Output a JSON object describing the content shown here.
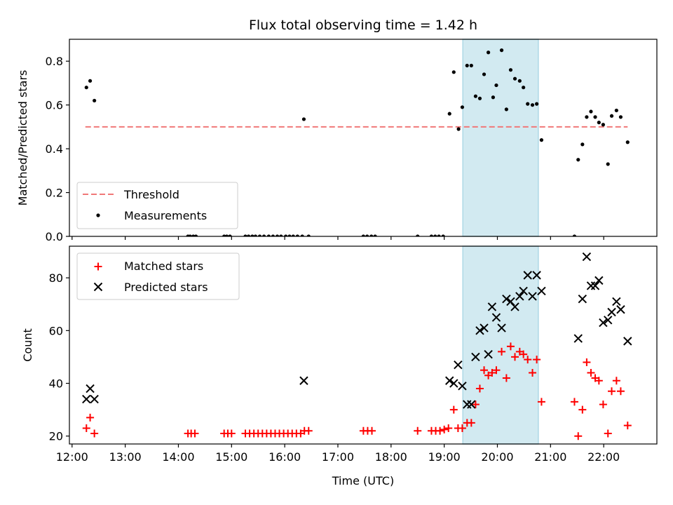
{
  "title": "Flux total observing time = 1.42 h",
  "colors": {
    "threshold": "#f07878",
    "measurement": "#000000",
    "matched": "#ff0000",
    "predicted": "#000000",
    "highlight": "#add8e6"
  },
  "chart_data": [
    {
      "type": "scatter",
      "ylabel": "Matched/Predicted stars",
      "xlim": [
        11.95,
        23.0
      ],
      "ylim": [
        0,
        0.9
      ],
      "yticks": [
        0.0,
        0.2,
        0.4,
        0.6,
        0.8
      ],
      "yticklabels": [
        "0.0",
        "0.2",
        "0.4",
        "0.6",
        "0.8"
      ],
      "highlight": [
        19.35,
        20.77
      ],
      "threshold": {
        "name": "Threshold",
        "value": 0.5,
        "x": [
          12.25,
          22.45
        ]
      },
      "legend": {
        "placement": "lower-left",
        "entries": [
          "Threshold",
          "Measurements"
        ]
      },
      "series": [
        {
          "name": "Measurements",
          "marker": "dot",
          "points": [
            [
              12.27,
              0.68
            ],
            [
              12.34,
              0.71
            ],
            [
              12.42,
              0.62
            ],
            [
              14.18,
              0
            ],
            [
              14.22,
              0
            ],
            [
              14.28,
              0
            ],
            [
              14.33,
              0
            ],
            [
              14.86,
              0
            ],
            [
              14.91,
              0
            ],
            [
              14.97,
              0
            ],
            [
              15.26,
              0
            ],
            [
              15.32,
              0
            ],
            [
              15.39,
              0
            ],
            [
              15.45,
              0
            ],
            [
              15.53,
              0
            ],
            [
              15.61,
              0
            ],
            [
              15.7,
              0
            ],
            [
              15.78,
              0
            ],
            [
              15.86,
              0
            ],
            [
              15.93,
              0
            ],
            [
              16.02,
              0
            ],
            [
              16.09,
              0
            ],
            [
              16.16,
              0
            ],
            [
              16.24,
              0
            ],
            [
              16.33,
              0
            ],
            [
              16.36,
              0.535
            ],
            [
              16.45,
              0
            ],
            [
              17.48,
              0
            ],
            [
              17.55,
              0
            ],
            [
              17.63,
              0
            ],
            [
              17.7,
              0
            ],
            [
              18.5,
              0
            ],
            [
              18.76,
              0
            ],
            [
              18.83,
              0
            ],
            [
              18.9,
              0
            ],
            [
              18.98,
              0
            ],
            [
              19.1,
              0.56
            ],
            [
              19.18,
              0.75
            ],
            [
              19.27,
              0.49
            ],
            [
              19.34,
              0.59
            ],
            [
              19.43,
              0.78
            ],
            [
              19.51,
              0.78
            ],
            [
              19.59,
              0.64
            ],
            [
              19.67,
              0.63
            ],
            [
              19.75,
              0.74
            ],
            [
              19.83,
              0.84
            ],
            [
              19.92,
              0.635
            ],
            [
              19.98,
              0.69
            ],
            [
              20.08,
              0.85
            ],
            [
              20.17,
              0.58
            ],
            [
              20.25,
              0.76
            ],
            [
              20.33,
              0.72
            ],
            [
              20.42,
              0.71
            ],
            [
              20.49,
              0.68
            ],
            [
              20.57,
              0.605
            ],
            [
              20.66,
              0.6
            ],
            [
              20.74,
              0.605
            ],
            [
              20.83,
              0.44
            ],
            [
              21.45,
              0
            ],
            [
              21.52,
              0.35
            ],
            [
              21.6,
              0.42
            ],
            [
              21.68,
              0.545
            ],
            [
              21.76,
              0.57
            ],
            [
              21.84,
              0.545
            ],
            [
              21.91,
              0.52
            ],
            [
              21.99,
              0.51
            ],
            [
              22.08,
              0.33
            ],
            [
              22.15,
              0.55
            ],
            [
              22.24,
              0.575
            ],
            [
              22.32,
              0.545
            ],
            [
              22.45,
              0.43
            ]
          ]
        }
      ]
    },
    {
      "type": "scatter",
      "xlabel": "Time (UTC)",
      "ylabel": "Count",
      "xlim": [
        11.95,
        23.0
      ],
      "ylim": [
        17,
        92
      ],
      "yticks": [
        20,
        40,
        60,
        80
      ],
      "yticklabels": [
        "20",
        "40",
        "60",
        "80"
      ],
      "xticks": [
        12,
        13,
        14,
        15,
        16,
        17,
        18,
        19,
        20,
        21,
        22
      ],
      "xticklabels": [
        "12:00",
        "13:00",
        "14:00",
        "15:00",
        "16:00",
        "17:00",
        "18:00",
        "19:00",
        "20:00",
        "21:00",
        "22:00"
      ],
      "highlight": [
        19.35,
        20.77
      ],
      "legend": {
        "placement": "upper-left",
        "entries": [
          "Matched stars",
          "Predicted stars"
        ]
      },
      "series": [
        {
          "name": "Matched stars",
          "marker": "plus",
          "points": [
            [
              12.27,
              23
            ],
            [
              12.34,
              27
            ],
            [
              12.42,
              21
            ],
            [
              14.18,
              21
            ],
            [
              14.24,
              21
            ],
            [
              14.31,
              21
            ],
            [
              14.86,
              21
            ],
            [
              14.93,
              21
            ],
            [
              15.0,
              21
            ],
            [
              15.26,
              21
            ],
            [
              15.34,
              21
            ],
            [
              15.42,
              21
            ],
            [
              15.5,
              21
            ],
            [
              15.58,
              21
            ],
            [
              15.66,
              21
            ],
            [
              15.74,
              21
            ],
            [
              15.82,
              21
            ],
            [
              15.9,
              21
            ],
            [
              15.98,
              21
            ],
            [
              16.06,
              21
            ],
            [
              16.14,
              21
            ],
            [
              16.22,
              21
            ],
            [
              16.3,
              21
            ],
            [
              16.37,
              22
            ],
            [
              16.45,
              22
            ],
            [
              17.48,
              22
            ],
            [
              17.56,
              22
            ],
            [
              17.64,
              22
            ],
            [
              18.5,
              22
            ],
            [
              18.76,
              22
            ],
            [
              18.84,
              22
            ],
            [
              18.92,
              22
            ],
            [
              19.0,
              22.5
            ],
            [
              19.08,
              23
            ],
            [
              19.18,
              30
            ],
            [
              19.26,
              23
            ],
            [
              19.34,
              23
            ],
            [
              19.43,
              25
            ],
            [
              19.51,
              25
            ],
            [
              19.59,
              32
            ],
            [
              19.67,
              38
            ],
            [
              19.75,
              45
            ],
            [
              19.83,
              43
            ],
            [
              19.9,
              44
            ],
            [
              19.98,
              45
            ],
            [
              20.08,
              52
            ],
            [
              20.17,
              42
            ],
            [
              20.25,
              54
            ],
            [
              20.33,
              50
            ],
            [
              20.42,
              52
            ],
            [
              20.49,
              51
            ],
            [
              20.57,
              49
            ],
            [
              20.66,
              44
            ],
            [
              20.74,
              49
            ],
            [
              20.83,
              33
            ],
            [
              21.45,
              33
            ],
            [
              21.52,
              20
            ],
            [
              21.6,
              30
            ],
            [
              21.68,
              48
            ],
            [
              21.76,
              44
            ],
            [
              21.84,
              42
            ],
            [
              21.91,
              41
            ],
            [
              21.99,
              32
            ],
            [
              22.08,
              21
            ],
            [
              22.15,
              37
            ],
            [
              22.24,
              41
            ],
            [
              22.32,
              37
            ],
            [
              22.45,
              24
            ]
          ]
        },
        {
          "name": "Predicted stars",
          "marker": "x",
          "points": [
            [
              12.27,
              34
            ],
            [
              12.34,
              38
            ],
            [
              12.42,
              34
            ],
            [
              16.36,
              41
            ],
            [
              19.1,
              41
            ],
            [
              19.18,
              40
            ],
            [
              19.26,
              47
            ],
            [
              19.34,
              39
            ],
            [
              19.43,
              32
            ],
            [
              19.51,
              32
            ],
            [
              19.59,
              50
            ],
            [
              19.67,
              60
            ],
            [
              19.75,
              61
            ],
            [
              19.83,
              51
            ],
            [
              19.9,
              69
            ],
            [
              19.98,
              65
            ],
            [
              20.08,
              61
            ],
            [
              20.17,
              72
            ],
            [
              20.25,
              71
            ],
            [
              20.33,
              69
            ],
            [
              20.42,
              73
            ],
            [
              20.49,
              75
            ],
            [
              20.57,
              81
            ],
            [
              20.66,
              73
            ],
            [
              20.74,
              81
            ],
            [
              20.83,
              75
            ],
            [
              21.52,
              57
            ],
            [
              21.6,
              72
            ],
            [
              21.68,
              88
            ],
            [
              21.76,
              77
            ],
            [
              21.84,
              77
            ],
            [
              21.91,
              79
            ],
            [
              21.99,
              63
            ],
            [
              22.08,
              64
            ],
            [
              22.15,
              67
            ],
            [
              22.24,
              71
            ],
            [
              22.32,
              68
            ],
            [
              22.45,
              56
            ]
          ]
        }
      ]
    }
  ]
}
